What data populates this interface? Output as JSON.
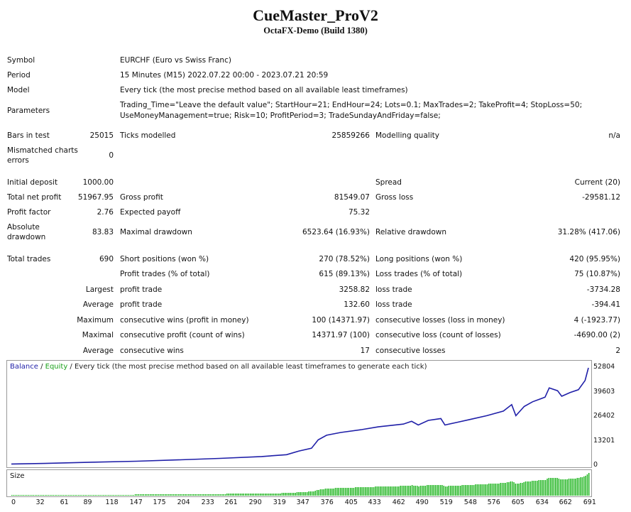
{
  "header": {
    "title": "CueMaster_ProV2",
    "subtitle": "OctaFX-Demo (Build 1380)"
  },
  "info": {
    "symbol_label": "Symbol",
    "symbol_value": "EURCHF (Euro vs Swiss Franc)",
    "period_label": "Period",
    "period_value": "15 Minutes (M15) 2022.07.22 00:00 - 2023.07.21 20:59",
    "model_label": "Model",
    "model_value": "Every tick (the most precise method based on all available least timeframes)",
    "parameters_label": "Parameters",
    "parameters_line1": "Trading_Time=\"Leave the default value\"; StartHour=21; EndHour=24; Lots=0.1; MaxTrades=2; TakeProfit=4; StopLoss=50;",
    "parameters_line2": "UseMoneyManagement=true; Risk=10; ProfitPeriod=3; TradeSundayAndFriday=false;"
  },
  "test": {
    "bars_label": "Bars in test",
    "bars_value": "25015",
    "ticks_label": "Ticks modelled",
    "ticks_value": "25859266",
    "quality_label": "Modelling quality",
    "quality_value": "n/a",
    "mismatch_label_1": "Mismatched charts",
    "mismatch_label_2": "errors",
    "mismatch_value": "0"
  },
  "results": {
    "initial_deposit_label": "Initial deposit",
    "initial_deposit_value": "1000.00",
    "spread_label": "Spread",
    "spread_value": "Current (20)",
    "net_profit_label": "Total net profit",
    "net_profit_value": "51967.95",
    "gross_profit_label": "Gross profit",
    "gross_profit_value": "81549.07",
    "gross_loss_label": "Gross loss",
    "gross_loss_value": "-29581.12",
    "profit_factor_label": "Profit factor",
    "profit_factor_value": "2.76",
    "expected_payoff_label": "Expected payoff",
    "expected_payoff_value": "75.32",
    "abs_dd_label_1": "Absolute",
    "abs_dd_label_2": "drawdown",
    "abs_dd_value": "83.83",
    "max_dd_label": "Maximal drawdown",
    "max_dd_value": "6523.64 (16.93%)",
    "rel_dd_label": "Relative drawdown",
    "rel_dd_value": "31.28% (417.06)"
  },
  "trades": {
    "total_label": "Total trades",
    "total_value": "690",
    "short_label": "Short positions (won %)",
    "short_value": "270 (78.52%)",
    "long_label": "Long positions (won %)",
    "long_value": "420 (95.95%)",
    "profit_trades_label": "Profit trades (% of total)",
    "profit_trades_value": "615 (89.13%)",
    "loss_trades_label": "Loss trades (% of total)",
    "loss_trades_value": "75 (10.87%)",
    "largest_prefix": "Largest",
    "largest_profit_label": "profit trade",
    "largest_profit_value": "3258.82",
    "largest_loss_label": "loss trade",
    "largest_loss_value": "-3734.28",
    "average_prefix": "Average",
    "average_profit_label": "profit trade",
    "average_profit_value": "132.60",
    "average_loss_label": "loss trade",
    "average_loss_value": "-394.41",
    "maximum_prefix": "Maximum",
    "max_consec_wins_label": "consecutive wins (profit in money)",
    "max_consec_wins_value": "100 (14371.97)",
    "max_consec_losses_label": "consecutive losses (loss in money)",
    "max_consec_losses_value": "4 (-1923.77)",
    "maximal_prefix": "Maximal",
    "maximal_consec_profit_label": "consecutive profit (count of wins)",
    "maximal_consec_profit_value": "14371.97 (100)",
    "maximal_consec_loss_label": "consecutive loss (count of losses)",
    "maximal_consec_loss_value": "-4690.00 (2)",
    "avg_consec_prefix": "Average",
    "avg_consec_wins_label": "consecutive wins",
    "avg_consec_wins_value": "17",
    "avg_consec_losses_label": "consecutive losses",
    "avg_consec_losses_value": "2"
  },
  "chart_legend": {
    "balance": "Balance",
    "sep1": " / ",
    "equity": "Equity",
    "rest": " / Every tick (the most precise method based on all available least timeframes to generate each tick)"
  },
  "size_label": "Size",
  "chart_data": {
    "type": "line",
    "series": [
      {
        "name": "Balance",
        "x": [
          0,
          40,
          100,
          150,
          200,
          250,
          300,
          330,
          345,
          360,
          368,
          378,
          395,
          420,
          440,
          470,
          480,
          488,
          500,
          515,
          520,
          535,
          550,
          570,
          590,
          600,
          605,
          615,
          625,
          640,
          645,
          655,
          660,
          670,
          680,
          688,
          692
        ],
        "y": [
          1000,
          1300,
          2000,
          2500,
          3200,
          4000,
          5000,
          6000,
          8000,
          9500,
          14000,
          16500,
          18000,
          19500,
          21000,
          22500,
          24000,
          22000,
          24500,
          25500,
          22000,
          23500,
          25000,
          27000,
          29500,
          33000,
          27000,
          32000,
          34500,
          37000,
          42000,
          40500,
          37500,
          39500,
          41000,
          46000,
          52804
        ]
      }
    ],
    "yticks": [
      "0",
      "13201",
      "26402",
      "39603",
      "52804"
    ],
    "ylim": [
      0,
      52804
    ],
    "xticks": [
      "0",
      "32",
      "61",
      "89",
      "118",
      "147",
      "175",
      "204",
      "233",
      "261",
      "290",
      "319",
      "347",
      "376",
      "405",
      "433",
      "462",
      "490",
      "519",
      "548",
      "576",
      "605",
      "634",
      "662",
      "691"
    ],
    "xlim": [
      0,
      692
    ],
    "colors": {
      "balance": "#1f1fa8",
      "equity": "#1aa11a",
      "size": "#12b012"
    }
  }
}
